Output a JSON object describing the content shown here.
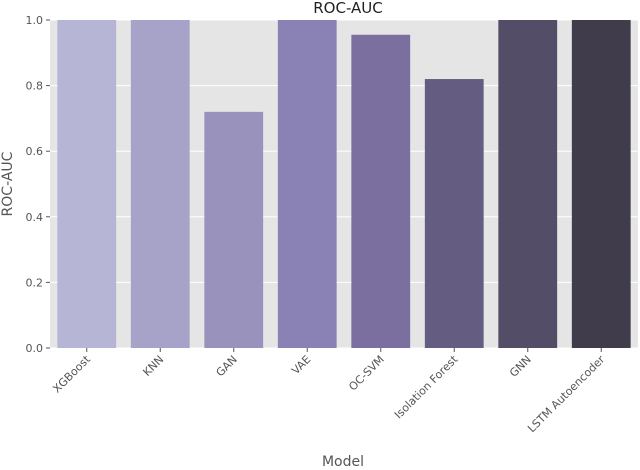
{
  "chart_data": {
    "type": "bar",
    "title": "ROC-AUC",
    "xlabel": "Model",
    "ylabel": "ROC-AUC",
    "categories": [
      "XGBoost",
      "KNN",
      "GAN",
      "VAE",
      "OC-SVM",
      "Isolation Forest",
      "GNN",
      "LSTM Autoencoder"
    ],
    "values": [
      1.0,
      1.0,
      0.72,
      1.0,
      0.955,
      0.82,
      1.0,
      1.0
    ],
    "ylim": [
      0,
      1.0
    ],
    "yticks": [
      "0.0",
      "0.2",
      "0.4",
      "0.6",
      "0.8",
      "1.0"
    ],
    "grid": true,
    "colors": {
      "background": "#e5e5e5",
      "grid": "#ffffff",
      "bars": [
        "#b7b5d6",
        "#a7a3c8",
        "#9892bd",
        "#8a82b4",
        "#7a6f9f",
        "#655c82",
        "#534d67",
        "#403c4b"
      ]
    }
  }
}
